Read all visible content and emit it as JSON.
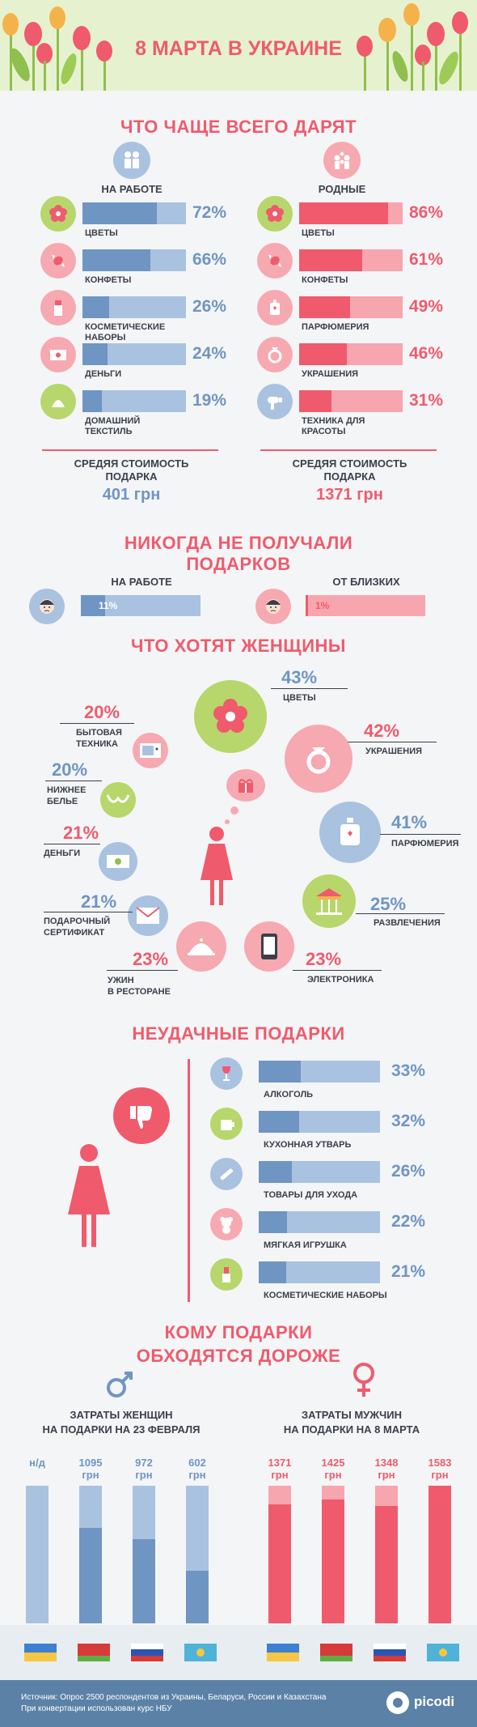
{
  "header": {
    "title": "8 МАРТА В УКРАИНЕ"
  },
  "gifts": {
    "title": "ЧТО ЧАЩЕ ВСЕГО ДАРЯТ",
    "work": {
      "title": "НА РАБОТЕ",
      "items": [
        {
          "label": "ЦВЕТЫ",
          "value": 72,
          "pct": "72%",
          "icon": "flower-icon"
        },
        {
          "label": "КОНФЕТЫ",
          "value": 66,
          "pct": "66%",
          "icon": "candy-icon"
        },
        {
          "label": "КОСМЕТИЧЕСКИЕ НАБОРЫ",
          "value": 26,
          "pct": "26%",
          "icon": "cosmetics-icon"
        },
        {
          "label": "ДЕНЬГИ",
          "value": 24,
          "pct": "24%",
          "icon": "money-icon"
        },
        {
          "label": "ДОМАШНИЙ ТЕКСТИЛЬ",
          "value": 19,
          "pct": "19%",
          "icon": "textile-icon"
        }
      ],
      "avg_label": "СРЕДЯЯ СТОИМОСТЬ ПОДАРКА",
      "avg_value": "401 грн"
    },
    "family": {
      "title": "РОДНЫЕ",
      "items": [
        {
          "label": "ЦВЕТЫ",
          "value": 86,
          "pct": "86%",
          "icon": "flower-icon"
        },
        {
          "label": "КОНФЕТЫ",
          "value": 61,
          "pct": "61%",
          "icon": "candy-icon"
        },
        {
          "label": "ПАРФЮМЕРИЯ",
          "value": 49,
          "pct": "49%",
          "icon": "perfume-icon"
        },
        {
          "label": "УКРАШЕНИЯ",
          "value": 46,
          "pct": "46%",
          "icon": "ring-icon"
        },
        {
          "label": "ТЕХНИКА ДЛЯ КРАСОТЫ",
          "value": 31,
          "pct": "31%",
          "icon": "hairdryer-icon"
        }
      ],
      "avg_label": "СРЕДЯЯ СТОИМОСТЬ ПОДАРКА",
      "avg_value": "1371 грн"
    }
  },
  "never": {
    "title_line1": "НИКОГДА НЕ ПОЛУЧАЛИ",
    "title_line2": "ПОДАРКОВ",
    "work": {
      "title": "НА РАБОТЕ",
      "value": 11,
      "pct": "11%"
    },
    "family": {
      "title": "ОТ БЛИЗКИХ",
      "value": 1,
      "pct": "1%"
    }
  },
  "wants": {
    "title": "ЧТО ХОТЯТ ЖЕНЩИНЫ",
    "items": [
      {
        "pct": "43%",
        "label": "ЦВЕТЫ",
        "value": 43
      },
      {
        "pct": "42%",
        "label": "УКРАШЕНИЯ",
        "value": 42
      },
      {
        "pct": "41%",
        "label": "ПАРФЮМЕРИЯ",
        "value": 41
      },
      {
        "pct": "25%",
        "label": "РАЗВЛЕЧЕНИЯ",
        "value": 25
      },
      {
        "pct": "23%",
        "label": "ЭЛЕКТРОНИКА",
        "value": 23
      },
      {
        "pct": "23%",
        "label_1": "УЖИН",
        "label_2": "В РЕСТОРАНЕ",
        "value": 23
      },
      {
        "pct": "21%",
        "label_1": "ПОДАРОЧНЫЙ",
        "label_2": "СЕРТИФИКАТ",
        "value": 21
      },
      {
        "pct": "21%",
        "label": "ДЕНЬГИ",
        "value": 21
      },
      {
        "pct": "20%",
        "label_1": "НИЖНЕЕ",
        "label_2": "БЕЛЬЕ",
        "value": 20
      },
      {
        "pct": "20%",
        "label_1": "БЫТОВАЯ",
        "label_2": "ТЕХНИКА",
        "value": 20
      }
    ]
  },
  "bad": {
    "title": "НЕУДАЧНЫЕ ПОДАРКИ",
    "items": [
      {
        "label": "АЛКОГОЛЬ",
        "value": 33,
        "pct": "33%"
      },
      {
        "label": "КУХОННАЯ УТВАРЬ",
        "value": 32,
        "pct": "32%"
      },
      {
        "label": "ТОВАРЫ ДЛЯ УХОДА",
        "value": 26,
        "pct": "26%"
      },
      {
        "label": "МЯГКАЯ ИГРУШКА",
        "value": 22,
        "pct": "22%"
      },
      {
        "label": "КОСМЕТИЧЕСКИЕ НАБОРЫ",
        "value": 21,
        "pct": "21%"
      }
    ]
  },
  "cost": {
    "title_line1": "КОМУ ПОДАРКИ",
    "title_line2": "ОБХОДЯТСЯ ДОРОЖЕ",
    "women": {
      "title_line1": "ЗАТРАТЫ ЖЕНЩИН",
      "title_line2": "НА ПОДАРКИ НА 23 ФЕВРАЛЯ",
      "columns": [
        {
          "label_1": "н/д",
          "label_2": "",
          "value": null
        },
        {
          "label_1": "1095",
          "label_2": "грн",
          "value": 1095
        },
        {
          "label_1": "972",
          "label_2": "грн",
          "value": 972
        },
        {
          "label_1": "602",
          "label_2": "грн",
          "value": 602
        }
      ]
    },
    "men": {
      "title_line1": "ЗАТРАТЫ МУЖЧИН",
      "title_line2": "НА ПОДАРКИ НА 8 МАРТА",
      "columns": [
        {
          "label_1": "1371",
          "label_2": "грн",
          "value": 1371
        },
        {
          "label_1": "1425",
          "label_2": "грн",
          "value": 1425
        },
        {
          "label_1": "1348",
          "label_2": "грн",
          "value": 1348
        },
        {
          "label_1": "1583",
          "label_2": "грн",
          "value": 1583
        }
      ]
    },
    "scale_max": 1583,
    "flags": [
      "ukraine-flag-icon",
      "belarus-flag-icon",
      "russia-flag-icon",
      "kazakhstan-flag-icon"
    ]
  },
  "footer": {
    "source_line1": "Источник: Опрос 2500 респондентов из Украины, Беларуси, России и Казахстана",
    "source_line2": "При конвертации использован курс НБУ",
    "brand": "picodi"
  },
  "colors": {
    "blue": "#6f95c3",
    "blue_light": "#a9c2e0",
    "red": "#ef5b6c",
    "red_light": "#f7a5ae",
    "green_icon": "#b7d66c",
    "icon_blue": "#a9c2e0",
    "icon_red": "#f6a9b0"
  }
}
